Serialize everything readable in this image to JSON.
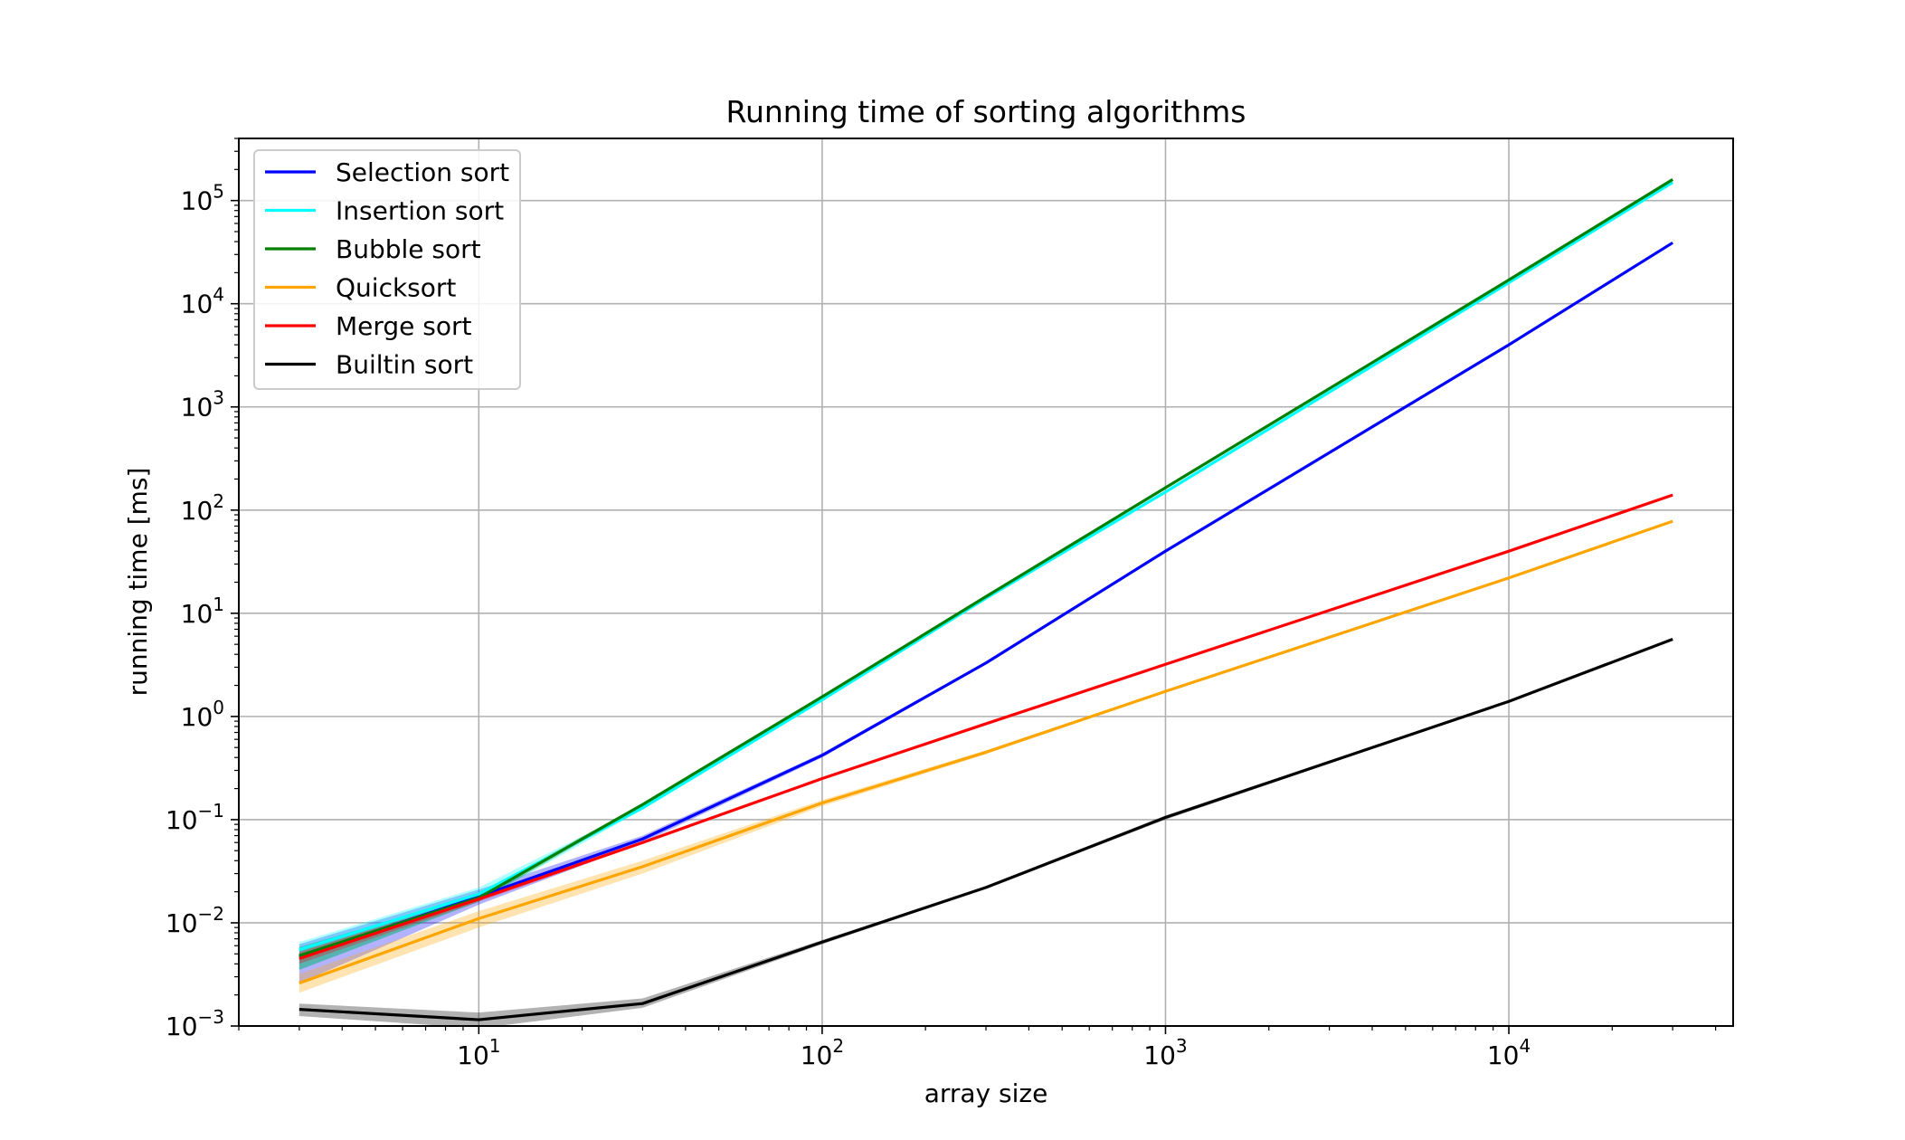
{
  "chart_data": {
    "type": "line",
    "title": "Running time of sorting algorithms",
    "xlabel": "array size",
    "ylabel": "running time [ms]",
    "xscale": "log",
    "yscale": "log",
    "xlim": [
      2.0,
      45000
    ],
    "ylim": [
      0.001,
      400000
    ],
    "grid": true,
    "legend_position": "top-left",
    "x_ticks": [
      {
        "value": 10,
        "base": "10",
        "exp": "1"
      },
      {
        "value": 100,
        "base": "10",
        "exp": "2"
      },
      {
        "value": 1000,
        "base": "10",
        "exp": "3"
      },
      {
        "value": 10000,
        "base": "10",
        "exp": "4"
      }
    ],
    "y_ticks": [
      {
        "value": 0.001,
        "base": "10",
        "exp": "−3"
      },
      {
        "value": 0.01,
        "base": "10",
        "exp": "−2"
      },
      {
        "value": 0.1,
        "base": "10",
        "exp": "−1"
      },
      {
        "value": 1,
        "base": "10",
        "exp": "0"
      },
      {
        "value": 10,
        "base": "10",
        "exp": "1"
      },
      {
        "value": 100,
        "base": "10",
        "exp": "2"
      },
      {
        "value": 1000,
        "base": "10",
        "exp": "3"
      },
      {
        "value": 10000,
        "base": "10",
        "exp": "4"
      },
      {
        "value": 100000,
        "base": "10",
        "exp": "5"
      }
    ],
    "x": [
      3,
      10,
      30,
      100,
      300,
      1000,
      10000,
      30000
    ],
    "series": [
      {
        "name": "Selection sort",
        "color": "#0000ff",
        "values": [
          0.0047,
          0.018,
          0.065,
          0.42,
          3.3,
          40,
          4000,
          39000
        ],
        "band": [
          [
            0.0026,
            0.0062
          ],
          [
            0.015,
            0.021
          ],
          [
            0.06,
            0.07
          ],
          [
            0.4,
            0.44
          ],
          [
            3.2,
            3.4
          ],
          [
            39,
            41
          ],
          [
            3950,
            4050
          ],
          [
            38500,
            39500
          ]
        ]
      },
      {
        "name": "Insertion sort",
        "color": "#00ffff",
        "values": [
          0.0055,
          0.019,
          0.13,
          1.45,
          14,
          150,
          16000,
          150000
        ],
        "band": [
          [
            0.0035,
            0.0065
          ],
          [
            0.016,
            0.022
          ],
          [
            0.125,
            0.135
          ],
          [
            1.4,
            1.5
          ],
          [
            13.5,
            14.5
          ],
          [
            145,
            155
          ],
          [
            15800,
            16200
          ],
          [
            148000,
            152000
          ]
        ]
      },
      {
        "name": "Bubble sort",
        "color": "#008000",
        "values": [
          0.0048,
          0.0175,
          0.14,
          1.55,
          14.5,
          165,
          17000,
          160000
        ],
        "band": [
          [
            0.0035,
            0.0058
          ],
          [
            0.016,
            0.019
          ],
          [
            0.135,
            0.145
          ],
          [
            1.5,
            1.6
          ],
          [
            14.0,
            15.0
          ],
          [
            160,
            170
          ],
          [
            16800,
            17200
          ],
          [
            158000,
            162000
          ]
        ]
      },
      {
        "name": "Quicksort",
        "color": "#ffa500",
        "values": [
          0.0026,
          0.011,
          0.035,
          0.145,
          0.45,
          1.75,
          22,
          78
        ],
        "band": [
          [
            0.0021,
            0.0032
          ],
          [
            0.009,
            0.013
          ],
          [
            0.03,
            0.04
          ],
          [
            0.135,
            0.155
          ],
          [
            0.43,
            0.47
          ],
          [
            1.7,
            1.8
          ],
          [
            21.5,
            22.5
          ],
          [
            76,
            80
          ]
        ]
      },
      {
        "name": "Merge sort",
        "color": "#ff0000",
        "values": [
          0.0045,
          0.017,
          0.06,
          0.25,
          0.85,
          3.2,
          40,
          140
        ],
        "band": [
          [
            0.004,
            0.0052
          ],
          [
            0.016,
            0.018
          ],
          [
            0.058,
            0.062
          ],
          [
            0.245,
            0.255
          ],
          [
            0.83,
            0.87
          ],
          [
            3.1,
            3.3
          ],
          [
            39,
            41
          ],
          [
            137,
            143
          ]
        ]
      },
      {
        "name": "Builtin sort",
        "color": "#000000",
        "values": [
          0.00145,
          0.00115,
          0.00165,
          0.0065,
          0.022,
          0.105,
          1.4,
          5.6
        ],
        "band": [
          [
            0.00125,
            0.00165
          ],
          [
            0.00095,
            0.00135
          ],
          [
            0.0015,
            0.00185
          ],
          [
            0.0062,
            0.0068
          ],
          [
            0.0215,
            0.0225
          ],
          [
            0.1,
            0.11
          ],
          [
            1.38,
            1.42
          ],
          [
            5.5,
            5.7
          ]
        ]
      }
    ]
  }
}
